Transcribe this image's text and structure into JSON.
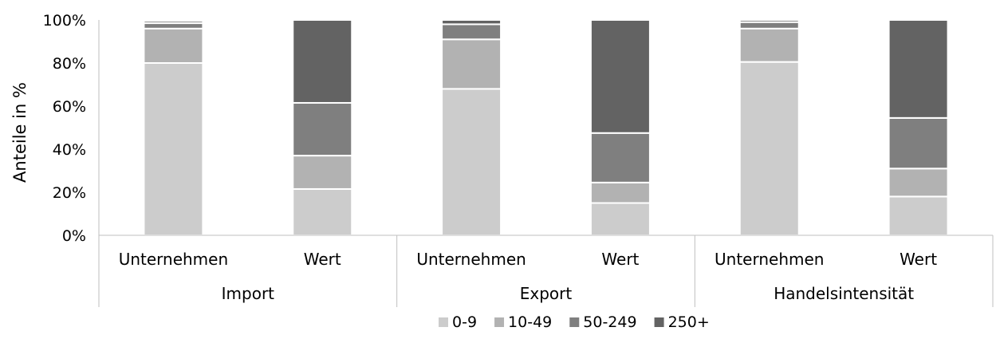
{
  "chart_data": {
    "type": "bar",
    "stacked": true,
    "percent": true,
    "ylabel": "Anteile in %",
    "ylim": [
      0,
      100
    ],
    "yticks": [
      "0%",
      "20%",
      "40%",
      "60%",
      "80%",
      "100%"
    ],
    "grid": false,
    "legend_position": "bottom",
    "groups": [
      {
        "label": "Import",
        "categories": [
          "Unternehmen",
          "Wert"
        ]
      },
      {
        "label": "Export",
        "categories": [
          "Unternehmen",
          "Wert"
        ]
      },
      {
        "label": "Handelsintensität",
        "categories": [
          "Unternehmen",
          "Wert"
        ]
      }
    ],
    "series": [
      {
        "name": "0-9",
        "color": "#cccccc",
        "values": [
          80,
          21.5,
          68,
          15,
          80.5,
          18
        ]
      },
      {
        "name": "10-49",
        "color": "#b2b2b2",
        "values": [
          16,
          15.5,
          23,
          9.5,
          15.5,
          13
        ]
      },
      {
        "name": "50-249",
        "color": "#7f7f7f",
        "values": [
          2.5,
          24.5,
          7,
          23,
          3,
          23.5
        ]
      },
      {
        "name": "250+",
        "color": "#636363",
        "values": [
          1,
          38.5,
          2,
          52.5,
          1,
          45.5
        ]
      }
    ]
  }
}
